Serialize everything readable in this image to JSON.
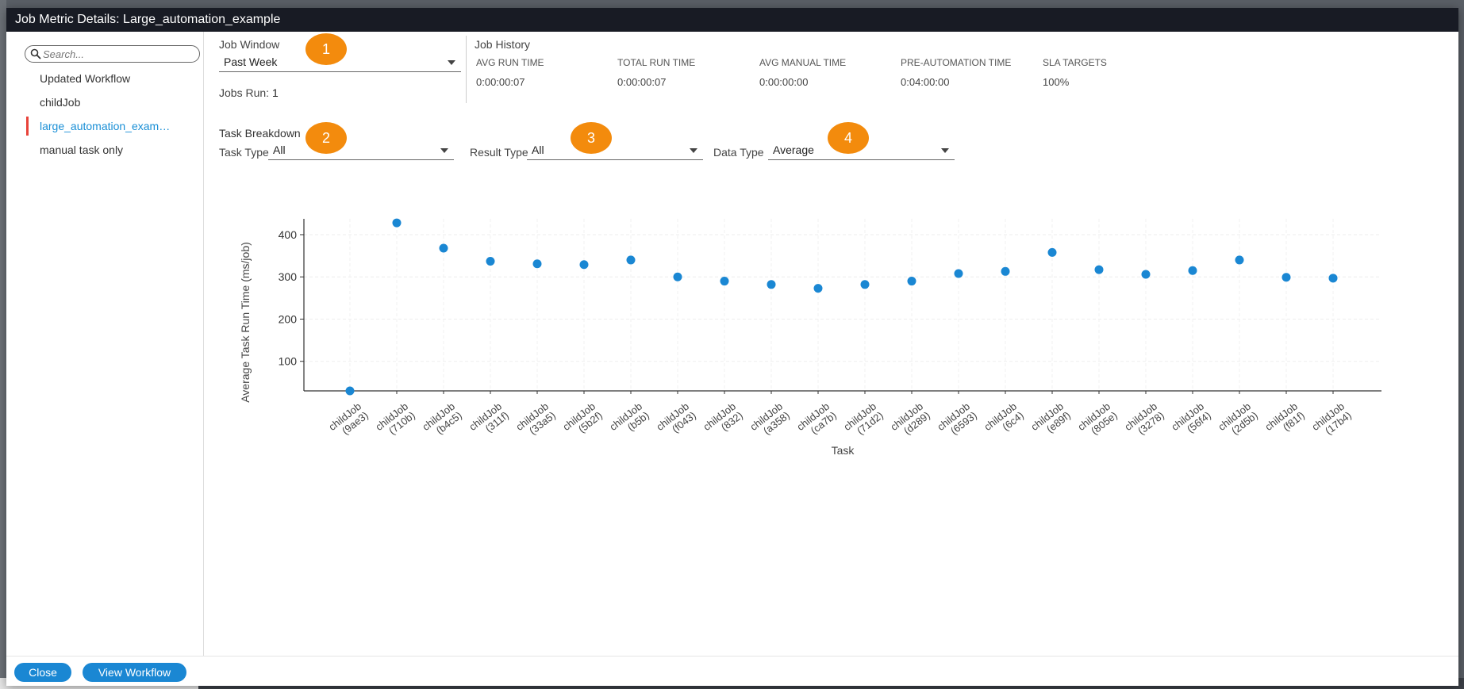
{
  "window": {
    "title": "Job Metric Details: Large_automation_example"
  },
  "sidebar": {
    "search_placeholder": "Search...",
    "items": [
      {
        "label": "Updated Workflow",
        "active": false
      },
      {
        "label": "childJob",
        "active": false
      },
      {
        "label": "large_automation_example",
        "active": true
      },
      {
        "label": "manual task only",
        "active": false
      }
    ]
  },
  "job_window": {
    "label": "Job Window",
    "value": "Past Week",
    "jobs_run_label": "Jobs Run:",
    "jobs_run_value": "1"
  },
  "job_history": {
    "title": "Job History",
    "metrics": [
      {
        "label": "AVG RUN TIME",
        "value": "0:00:00:07"
      },
      {
        "label": "TOTAL RUN TIME",
        "value": "0:00:00:07"
      },
      {
        "label": "AVG MANUAL TIME",
        "value": "0:00:00:00"
      },
      {
        "label": "PRE-AUTOMATION TIME",
        "value": "0:04:00:00"
      },
      {
        "label": "SLA TARGETS",
        "value": "100%"
      }
    ]
  },
  "task_breakdown": {
    "title": "Task Breakdown",
    "task_type_label": "Task Type",
    "task_type_value": "All",
    "result_type_label": "Result Type",
    "result_type_value": "All",
    "data_type_label": "Data Type",
    "data_type_value": "Average"
  },
  "badges": [
    "1",
    "2",
    "3",
    "4"
  ],
  "colors": {
    "accent": "#1a87d3",
    "badge": "#f38b0d",
    "active_marker": "#e8433a",
    "header": "#181b24"
  },
  "chart_data": {
    "type": "scatter",
    "xlabel": "Task",
    "ylabel": "Average Task Run Time (ms/job)",
    "ylim": [
      30,
      430
    ],
    "yticks": [
      100,
      200,
      300,
      400
    ],
    "grid": true,
    "color": "#1a87d3",
    "categories": [
      [
        "childJob",
        "(9ae3)"
      ],
      [
        "childJob",
        "(710b)"
      ],
      [
        "childJob",
        "(b4c5)"
      ],
      [
        "childJob",
        "(311f)"
      ],
      [
        "childJob",
        "(33a5)"
      ],
      [
        "childJob",
        "(5b2f)"
      ],
      [
        "childJob",
        "(b5b)"
      ],
      [
        "childJob",
        "(f043)"
      ],
      [
        "childJob",
        "(832)"
      ],
      [
        "childJob",
        "(a358)"
      ],
      [
        "childJob",
        "(ca7b)"
      ],
      [
        "childJob",
        "(71d2)"
      ],
      [
        "childJob",
        "(d289)"
      ],
      [
        "childJob",
        "(6593)"
      ],
      [
        "childJob",
        "(6c4)"
      ],
      [
        "childJob",
        "(e89f)"
      ],
      [
        "childJob",
        "(805e)"
      ],
      [
        "childJob",
        "(3278)"
      ],
      [
        "childJob",
        "(56f4)"
      ],
      [
        "childJob",
        "(2d5b)"
      ],
      [
        "childJob",
        "(f81f)"
      ],
      [
        "childJob",
        "(17b4)"
      ]
    ],
    "values": [
      30,
      428,
      368,
      337,
      331,
      329,
      340,
      300,
      290,
      282,
      273,
      282,
      290,
      308,
      313,
      358,
      317,
      306,
      315,
      340,
      299,
      297
    ]
  },
  "footer": {
    "close_label": "Close",
    "view_workflow_label": "View Workflow"
  }
}
